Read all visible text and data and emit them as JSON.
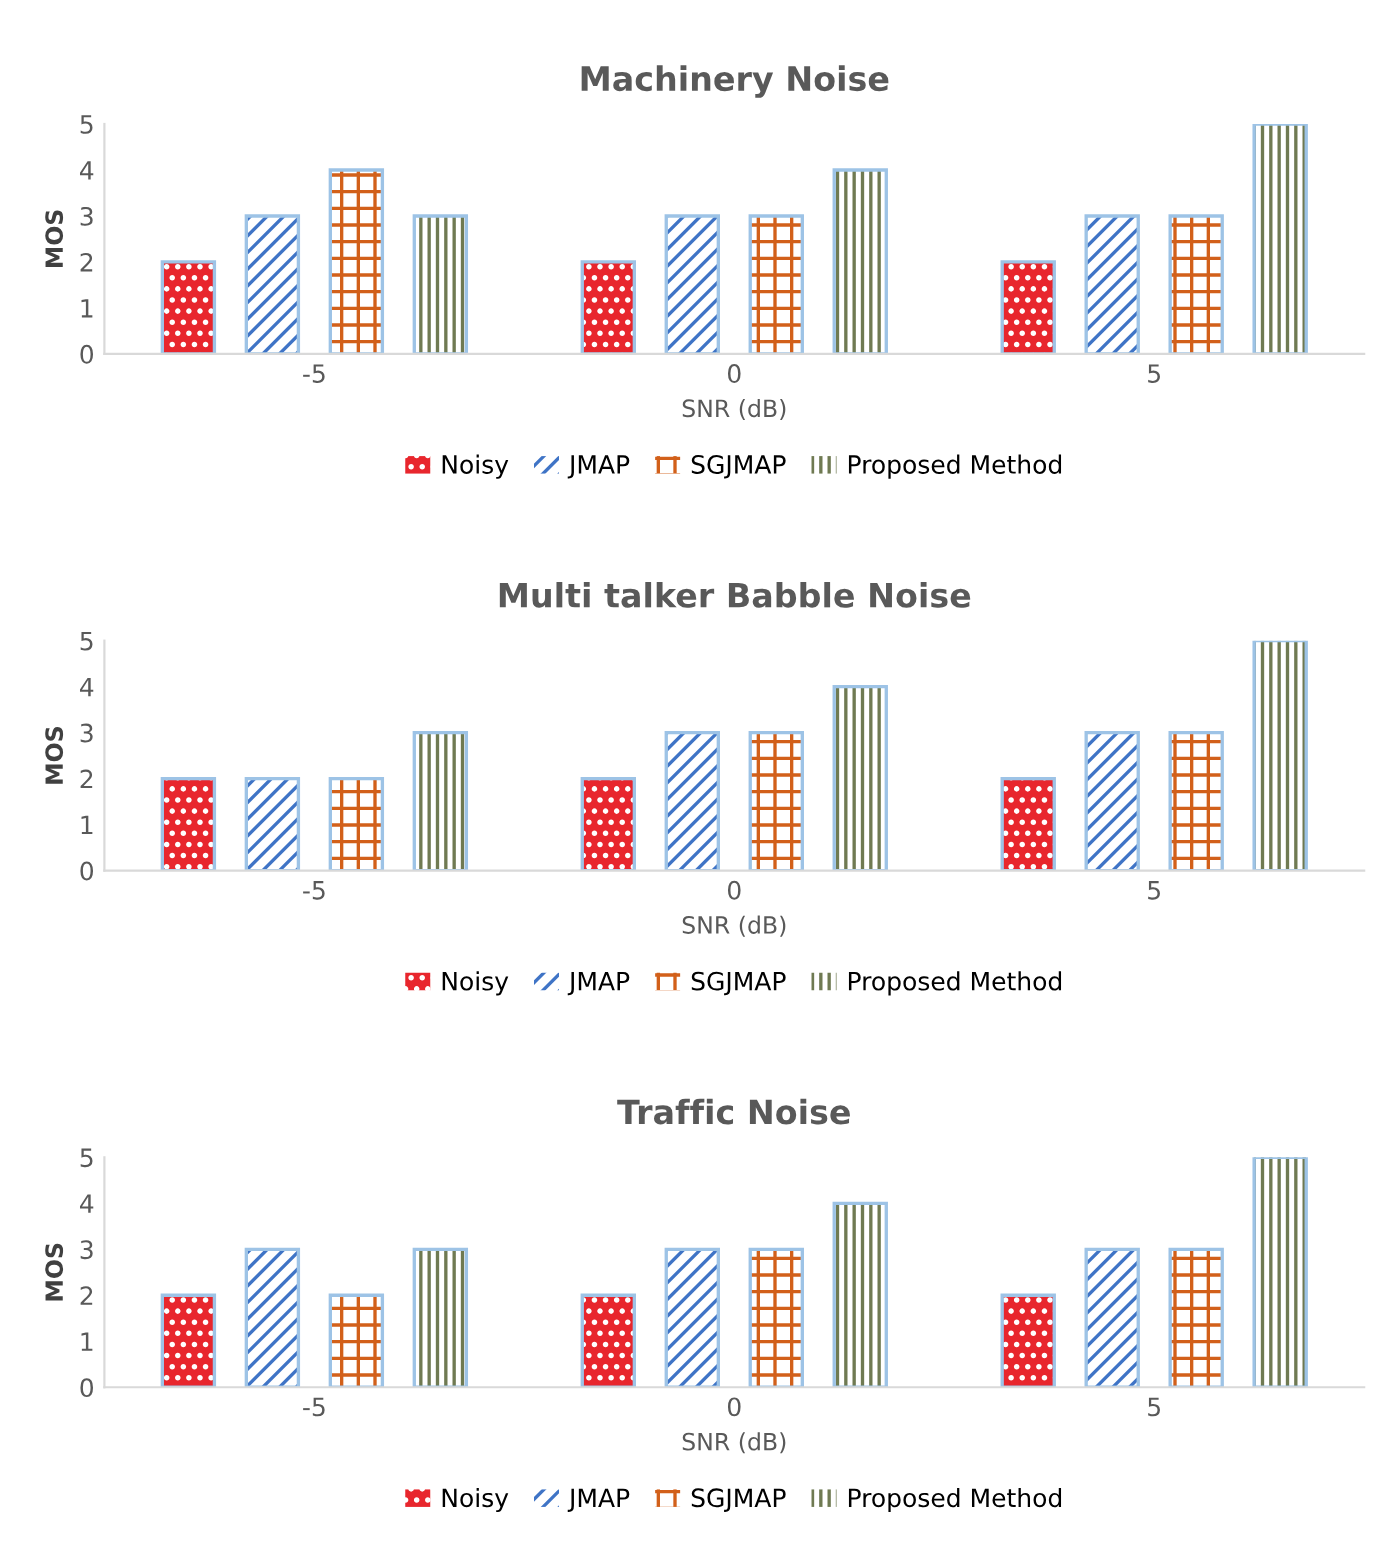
{
  "chart_data": [
    {
      "type": "bar",
      "title": "Machinery Noise",
      "xlabel": "SNR (dB)",
      "ylabel": "MOS",
      "categories": [
        "-5",
        "0",
        "5"
      ],
      "ylim": [
        0,
        5
      ],
      "yticks": [
        0,
        1,
        2,
        3,
        4,
        5
      ],
      "legend": "bottom",
      "grid": false,
      "series": [
        {
          "name": "Noisy",
          "color": "#e8262d",
          "values": [
            2,
            2,
            2
          ]
        },
        {
          "name": "JMAP",
          "color": "#3f74c6",
          "values": [
            3,
            3,
            3
          ]
        },
        {
          "name": "SGJMAP",
          "color": "#d2601a",
          "values": [
            4,
            3,
            3
          ]
        },
        {
          "name": "Proposed Method",
          "color": "#6f7a52",
          "values": [
            3,
            4,
            5
          ]
        }
      ]
    },
    {
      "type": "bar",
      "title": "Multi talker Babble Noise",
      "xlabel": "SNR (dB)",
      "ylabel": "MOS",
      "categories": [
        "-5",
        "0",
        "5"
      ],
      "ylim": [
        0,
        5
      ],
      "yticks": [
        0,
        1,
        2,
        3,
        4,
        5
      ],
      "legend": "bottom",
      "grid": false,
      "series": [
        {
          "name": "Noisy",
          "color": "#e8262d",
          "values": [
            2,
            2,
            2
          ]
        },
        {
          "name": "JMAP",
          "color": "#3f74c6",
          "values": [
            2,
            3,
            3
          ]
        },
        {
          "name": "SGJMAP",
          "color": "#d2601a",
          "values": [
            2,
            3,
            3
          ]
        },
        {
          "name": "Proposed Method",
          "color": "#6f7a52",
          "values": [
            3,
            4,
            5
          ]
        }
      ]
    },
    {
      "type": "bar",
      "title": "Traffic Noise",
      "xlabel": "SNR (dB)",
      "ylabel": "MOS",
      "categories": [
        "-5",
        "0",
        "5"
      ],
      "ylim": [
        0,
        5
      ],
      "yticks": [
        0,
        1,
        2,
        3,
        4,
        5
      ],
      "legend": "bottom",
      "grid": false,
      "series": [
        {
          "name": "Noisy",
          "color": "#e8262d",
          "values": [
            2,
            2,
            2
          ]
        },
        {
          "name": "JMAP",
          "color": "#3f74c6",
          "values": [
            3,
            3,
            3
          ]
        },
        {
          "name": "SGJMAP",
          "color": "#d2601a",
          "values": [
            2,
            3,
            3
          ]
        },
        {
          "name": "Proposed Method",
          "color": "#6f7a52",
          "values": [
            3,
            4,
            5
          ]
        }
      ]
    }
  ]
}
